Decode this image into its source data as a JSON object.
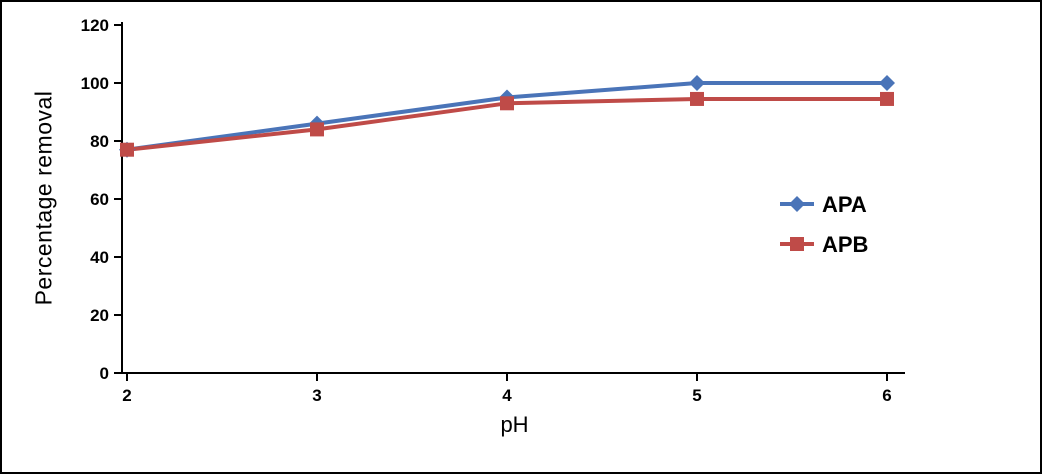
{
  "chart_data": {
    "type": "line",
    "title": "",
    "xlabel": "pH",
    "ylabel": "Percentage removal",
    "x": [
      2,
      3,
      4,
      5,
      6
    ],
    "xticks": [
      2,
      3,
      4,
      5,
      6
    ],
    "yticks": [
      0,
      20,
      40,
      60,
      80,
      100,
      120
    ],
    "ylim": [
      0,
      120
    ],
    "xlim": [
      2,
      6
    ],
    "grid": false,
    "legend_position": "right-middle",
    "series": [
      {
        "name": "APA",
        "marker": "diamond",
        "color": "#4a74b8",
        "values": [
          77,
          86,
          95,
          100,
          100
        ]
      },
      {
        "name": "APB",
        "marker": "square",
        "color": "#bf4b48",
        "values": [
          77,
          84,
          93,
          94.5,
          94.5
        ]
      }
    ]
  },
  "frame": {
    "border_color": "#000000",
    "axis_color": "#000000",
    "tick_label_color": "#000000"
  }
}
